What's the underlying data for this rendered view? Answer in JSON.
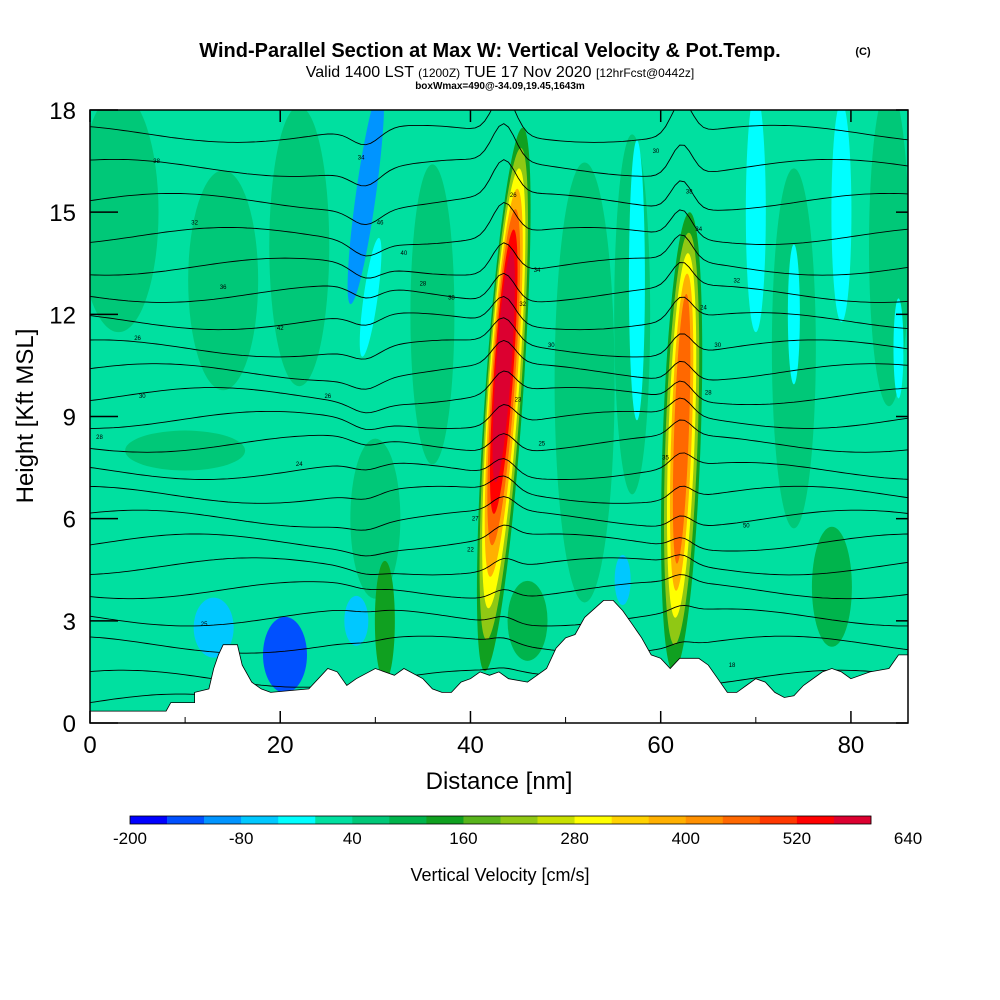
{
  "chart_data": {
    "type": "heatmap",
    "title": "Wind-Parallel Section at Max W: Vertical Velocity & Pot.Temp.",
    "title_mark": "(C)",
    "subtitle": {
      "main_a": "Valid 1400 LST",
      "utc": "(1200Z)",
      "main_b": "TUE 17 Nov 2020",
      "forecast": "[12hrFcst@0442z]"
    },
    "box_info": "boxWmax=490@-34.09,19.45,1643m",
    "xlabel": "Distance [nm]",
    "ylabel": "Height [Kft MSL]",
    "xlim": [
      0,
      86
    ],
    "ylim": [
      0,
      18
    ],
    "x_ticks": [
      "0",
      "20",
      "40",
      "60",
      "80"
    ],
    "y_ticks": [
      "0",
      "3",
      "6",
      "9",
      "12",
      "15",
      "18"
    ],
    "colorbar": {
      "label": "Vertical Velocity [cm/s]",
      "min": -200,
      "step": 40,
      "tick_labels": [
        "-200",
        "-80",
        "40",
        "160",
        "280",
        "400",
        "520",
        "640"
      ],
      "colors": [
        "#0000ff",
        "#0050ff",
        "#0094ff",
        "#00c8ff",
        "#00ffff",
        "#00e0a0",
        "#00c878",
        "#00b44c",
        "#10a020",
        "#58b41c",
        "#90c814",
        "#c8e000",
        "#ffff00",
        "#ffd200",
        "#ffb000",
        "#ff9000",
        "#ff6800",
        "#ff3800",
        "#ff0000",
        "#dc0030"
      ]
    },
    "updrafts": [
      {
        "x": 43.5,
        "top_kft": 17.5,
        "peak_cm_s": 660
      },
      {
        "x": 62.2,
        "top_kft": 15.0,
        "peak_cm_s": 500
      }
    ],
    "terrain_kft": [
      [
        0,
        0.35
      ],
      [
        8,
        0.35
      ],
      [
        8.5,
        0.6
      ],
      [
        11,
        0.6
      ],
      [
        11,
        0.9
      ],
      [
        12.5,
        1.0
      ],
      [
        13,
        1.6
      ],
      [
        13.5,
        2.0
      ],
      [
        14,
        2.3
      ],
      [
        15.5,
        2.3
      ],
      [
        16,
        1.7
      ],
      [
        17,
        1.2
      ],
      [
        18,
        1.0
      ],
      [
        19,
        0.9
      ],
      [
        21,
        0.95
      ],
      [
        23,
        1.0
      ],
      [
        24,
        1.3
      ],
      [
        25,
        1.6
      ],
      [
        26,
        1.5
      ],
      [
        27,
        1.1
      ],
      [
        28,
        1.3
      ],
      [
        30,
        1.6
      ],
      [
        32,
        1.4
      ],
      [
        33,
        1.6
      ],
      [
        35,
        1.3
      ],
      [
        36,
        1.0
      ],
      [
        37,
        0.9
      ],
      [
        38,
        0.9
      ],
      [
        39,
        1.2
      ],
      [
        40,
        1.3
      ],
      [
        41,
        1.5
      ],
      [
        42,
        1.4
      ],
      [
        43,
        1.5
      ],
      [
        44,
        1.3
      ],
      [
        46,
        1.2
      ],
      [
        48,
        1.6
      ],
      [
        49,
        2.2
      ],
      [
        50,
        2.5
      ],
      [
        51,
        2.6
      ],
      [
        52,
        3.1
      ],
      [
        54,
        3.6
      ],
      [
        55,
        3.6
      ],
      [
        56,
        3.3
      ],
      [
        57,
        2.9
      ],
      [
        58,
        2.5
      ],
      [
        59,
        2.0
      ],
      [
        60,
        1.9
      ],
      [
        61,
        1.6
      ],
      [
        62,
        1.9
      ],
      [
        64,
        1.9
      ],
      [
        65,
        1.7
      ],
      [
        66,
        1.3
      ],
      [
        67,
        0.9
      ],
      [
        68,
        0.9
      ],
      [
        69,
        1.1
      ],
      [
        70,
        1.3
      ],
      [
        71,
        1.2
      ],
      [
        72,
        0.9
      ],
      [
        73,
        0.75
      ],
      [
        74,
        0.8
      ],
      [
        75,
        1.1
      ],
      [
        77,
        1.5
      ],
      [
        78,
        1.6
      ],
      [
        79,
        1.5
      ],
      [
        80,
        1.3
      ],
      [
        82,
        1.5
      ],
      [
        84,
        1.6
      ],
      [
        85,
        2.0
      ],
      [
        86,
        2.0
      ]
    ],
    "isentropes_kft": [
      0.6,
      1.3,
      2.3,
      3.1,
      3.9,
      4.6,
      5.3,
      6.0,
      6.7,
      7.4,
      8.2,
      8.9,
      9.6,
      10.3,
      11.0,
      11.8,
      12.6,
      13.4,
      14.3,
      15.3,
      16.3,
      17.3
    ],
    "isentrope_labels": [
      {
        "text": "28",
        "x": 1.0,
        "kft": 8.4
      },
      {
        "text": "30",
        "x": 5.5,
        "kft": 9.6
      },
      {
        "text": "38",
        "x": 7.0,
        "kft": 16.5
      },
      {
        "text": "32",
        "x": 11.0,
        "kft": 14.7
      },
      {
        "text": "25",
        "x": 12.0,
        "kft": 2.9
      },
      {
        "text": "36",
        "x": 14.0,
        "kft": 12.8
      },
      {
        "text": "24",
        "x": 22.0,
        "kft": 7.6
      },
      {
        "text": "34",
        "x": 28.5,
        "kft": 16.6
      },
      {
        "text": "46",
        "x": 30.5,
        "kft": 14.7
      },
      {
        "text": "40",
        "x": 33.0,
        "kft": 13.8
      },
      {
        "text": "28",
        "x": 35.0,
        "kft": 12.9
      },
      {
        "text": "38",
        "x": 38.0,
        "kft": 12.5
      },
      {
        "text": "26",
        "x": 25.0,
        "kft": 9.6
      },
      {
        "text": "42",
        "x": 20.0,
        "kft": 11.6
      },
      {
        "text": "22",
        "x": 40.0,
        "kft": 5.1
      },
      {
        "text": "27",
        "x": 40.5,
        "kft": 6.0
      },
      {
        "text": "26",
        "x": 44.5,
        "kft": 15.5
      },
      {
        "text": "34",
        "x": 47.0,
        "kft": 13.3
      },
      {
        "text": "32",
        "x": 45.5,
        "kft": 12.3
      },
      {
        "text": "30",
        "x": 48.5,
        "kft": 11.1
      },
      {
        "text": "23",
        "x": 45.0,
        "kft": 9.5
      },
      {
        "text": "25",
        "x": 47.5,
        "kft": 8.2
      },
      {
        "text": "30",
        "x": 59.5,
        "kft": 16.8
      },
      {
        "text": "38",
        "x": 63.0,
        "kft": 15.6
      },
      {
        "text": "34",
        "x": 64.0,
        "kft": 14.5
      },
      {
        "text": "24",
        "x": 64.5,
        "kft": 12.2
      },
      {
        "text": "30",
        "x": 66.0,
        "kft": 11.1
      },
      {
        "text": "32",
        "x": 68.0,
        "kft": 13.0
      },
      {
        "text": "28",
        "x": 65.0,
        "kft": 9.7
      },
      {
        "text": "35",
        "x": 60.5,
        "kft": 7.8
      },
      {
        "text": "50",
        "x": 69.0,
        "kft": 5.8
      },
      {
        "text": "18",
        "x": 67.5,
        "kft": 1.7
      },
      {
        "text": "26",
        "x": 5.0,
        "kft": 11.3
      }
    ],
    "grid": false
  },
  "colors": {
    "frame": "#000000",
    "terrain": "#ffffff",
    "contour": "#000000"
  }
}
